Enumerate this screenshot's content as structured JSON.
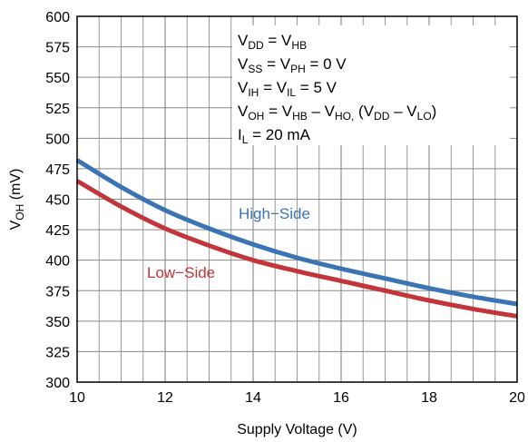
{
  "chart_data": {
    "type": "line",
    "title": "",
    "xlabel": "Supply Voltage (V)",
    "ylabel": {
      "main": "V",
      "sub": "OH",
      "unit": " (mV)"
    },
    "xlim": [
      10,
      20
    ],
    "ylim": [
      300,
      600
    ],
    "x_major_ticks": [
      10,
      12,
      14,
      16,
      18,
      20
    ],
    "x_minor_step": 0.5,
    "y_ticks": [
      300,
      325,
      350,
      375,
      400,
      425,
      450,
      475,
      500,
      525,
      550,
      575,
      600
    ],
    "grid": true,
    "legend": "none",
    "series": [
      {
        "name": "High−Side",
        "color": "#3a74b4",
        "x": [
          10,
          11,
          12,
          13,
          14,
          15,
          16,
          17,
          18,
          19,
          20
        ],
        "y": [
          482,
          460,
          441,
          426,
          413,
          402,
          393,
          385,
          377,
          370,
          364
        ]
      },
      {
        "name": "Low−Side",
        "color": "#c2353a",
        "x": [
          10,
          11,
          12,
          13,
          14,
          15,
          16,
          17,
          18,
          19,
          20
        ],
        "y": [
          465,
          444,
          426,
          412,
          400,
          391,
          383,
          375,
          367,
          360,
          354
        ]
      }
    ],
    "annotations": [
      [
        {
          "t": "V"
        },
        {
          "t": "DD",
          "s": true
        },
        {
          "t": " = V"
        },
        {
          "t": "HB",
          "s": true
        }
      ],
      [
        {
          "t": "V"
        },
        {
          "t": "SS",
          "s": true
        },
        {
          "t": " = V"
        },
        {
          "t": "PH",
          "s": true
        },
        {
          "t": " = 0 V"
        }
      ],
      [
        {
          "t": "V"
        },
        {
          "t": "IH",
          "s": true
        },
        {
          "t": " = V"
        },
        {
          "t": "IL",
          "s": true
        },
        {
          "t": " = 5 V"
        }
      ],
      [
        {
          "t": "V"
        },
        {
          "t": "OH",
          "s": true
        },
        {
          "t": " = V"
        },
        {
          "t": "HB",
          "s": true
        },
        {
          "t": " – V"
        },
        {
          "t": "HO,",
          "s": true
        },
        {
          "t": " (V"
        },
        {
          "t": "DD",
          "s": true
        },
        {
          "t": " – V"
        },
        {
          "t": "LO",
          "s": true
        },
        {
          "t": ")"
        }
      ],
      [
        {
          "t": "I"
        },
        {
          "t": "L",
          "s": true
        },
        {
          "t": " = 20 mA"
        }
      ]
    ]
  }
}
